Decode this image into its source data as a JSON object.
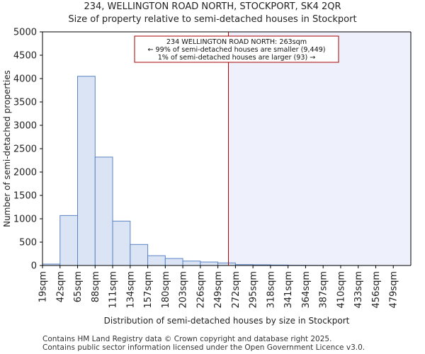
{
  "chart_data": {
    "type": "bar",
    "title": "234, WELLINGTON ROAD NORTH, STOCKPORT, SK4 2QR",
    "subtitle": "Size of property relative to semi-detached houses in Stockport",
    "xlabel": "Distribution of semi-detached houses by size in Stockport",
    "ylabel": "Number of semi-detached properties",
    "categories": [
      "19sqm",
      "42sqm",
      "65sqm",
      "88sqm",
      "111sqm",
      "134sqm",
      "157sqm",
      "180sqm",
      "203sqm",
      "226sqm",
      "249sqm",
      "272sqm",
      "295sqm",
      "318sqm",
      "341sqm",
      "364sqm",
      "387sqm",
      "410sqm",
      "433sqm",
      "456sqm",
      "479sqm"
    ],
    "values": [
      30,
      1070,
      4050,
      2320,
      950,
      450,
      210,
      150,
      95,
      75,
      55,
      20,
      15,
      10,
      5,
      3,
      2,
      1,
      1,
      0,
      0
    ],
    "ylim": [
      0,
      5000
    ],
    "yticks": [
      0,
      500,
      1000,
      1500,
      2000,
      2500,
      3000,
      3500,
      4000,
      4500,
      5000
    ],
    "marker": {
      "value_sqm": 263,
      "position_index": 10.6,
      "color": "#aa0000",
      "highlight_color": "#eef0fb"
    },
    "annotation": {
      "line1": "234 WELLINGTON ROAD NORTH: 263sqm",
      "line2": "← 99% of semi-detached houses are smaller (9,449)",
      "line3": "1% of semi-detached houses are larger (93) →"
    },
    "bar_fill": "#dbe4f5",
    "bar_edge": "#5b84c4"
  },
  "footer": {
    "line1": "Contains HM Land Registry data © Crown copyright and database right 2025.",
    "line2": "Contains public sector information licensed under the Open Government Licence v3.0."
  }
}
